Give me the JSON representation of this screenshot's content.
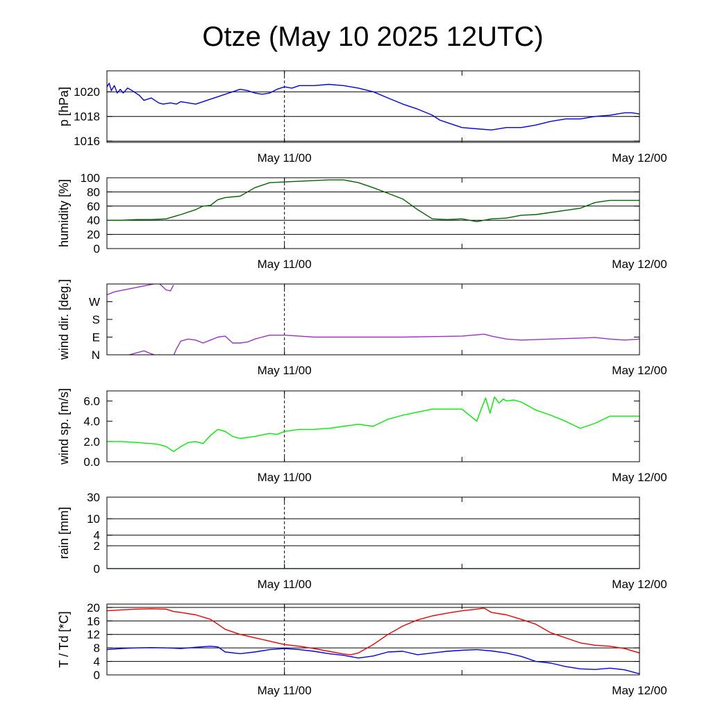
{
  "chart_data": {
    "type": "line",
    "title": "Otze (May 10 2025 12UTC)",
    "x_labels": [
      "May 11/00",
      "May 12/00"
    ],
    "time_range_hours": [
      0,
      36
    ],
    "midnight_marker_hours": 12,
    "panels": [
      {
        "id": "pressure",
        "ylabel": "p [hPa]",
        "ylim": [
          1015.9,
          1021.7
        ],
        "yticks": [
          1016,
          1018,
          1020
        ],
        "ytick_labels": [
          "1016",
          "1018",
          "1020"
        ],
        "gridlines": [
          1016,
          1018,
          1020
        ],
        "series": [
          {
            "color": "#0000ee",
            "x": [
              0,
              0.15,
              0.3,
              0.5,
              0.7,
              0.9,
              1.1,
              1.4,
              1.7,
              2.2,
              2.5,
              3.0,
              3.5,
              3.8,
              4.3,
              4.7,
              5.0,
              5.5,
              6.0,
              6.5,
              7.0,
              7.5,
              8.0,
              8.5,
              9.0,
              9.5,
              10.0,
              10.5,
              11.0,
              11.5,
              12.0,
              12.5,
              13.0,
              14.0,
              15.0,
              16.0,
              17.0,
              18.0,
              19.0,
              20.0,
              21.0,
              22.0,
              22.5,
              23.0,
              24.0,
              25.0,
              26.0,
              27.0,
              28.0,
              29.0,
              30.0,
              31.0,
              32.0,
              33.0,
              34.0,
              35.0,
              35.5,
              36.0
            ],
            "y": [
              1020.4,
              1020.7,
              1020.1,
              1020.5,
              1019.9,
              1020.2,
              1019.9,
              1020.3,
              1020.1,
              1019.7,
              1019.3,
              1019.5,
              1019.1,
              1019.0,
              1019.1,
              1019.0,
              1019.2,
              1019.1,
              1019.0,
              1019.2,
              1019.4,
              1019.6,
              1019.8,
              1020.0,
              1020.2,
              1020.1,
              1019.9,
              1019.8,
              1019.9,
              1020.2,
              1020.4,
              1020.3,
              1020.5,
              1020.5,
              1020.6,
              1020.5,
              1020.3,
              1020.0,
              1019.5,
              1019.0,
              1018.6,
              1018.1,
              1017.7,
              1017.5,
              1017.1,
              1017.0,
              1016.9,
              1017.1,
              1017.1,
              1017.3,
              1017.6,
              1017.8,
              1017.8,
              1018.0,
              1018.1,
              1018.3,
              1018.3,
              1018.2
            ]
          }
        ]
      },
      {
        "id": "humidity",
        "ylabel": "humidity [%]",
        "ylim": [
          0,
          100
        ],
        "yticks": [
          0,
          20,
          40,
          60,
          80,
          100
        ],
        "ytick_labels": [
          "0",
          "20",
          "40",
          "60",
          "80",
          "100"
        ],
        "gridlines": [
          20,
          40,
          60,
          80,
          100
        ],
        "series": [
          {
            "color": "#006400",
            "x": [
              0,
              1,
              2,
              3,
              4,
              4.5,
              5,
              6,
              6.5,
              7,
              7.5,
              8,
              9,
              10,
              11,
              12,
              13,
              14,
              15,
              16,
              17,
              18,
              19,
              20,
              21,
              22,
              23,
              24,
              25,
              26,
              27,
              28,
              29,
              30,
              31,
              32,
              33,
              34,
              35,
              36
            ],
            "y": [
              40,
              40,
              41,
              41,
              42,
              45,
              48,
              55,
              60,
              61,
              69,
              72,
              74,
              86,
              93,
              94,
              95,
              96,
              97,
              97,
              93,
              86,
              78,
              70,
              55,
              42,
              41,
              42,
              38,
              42,
              43,
              47,
              48,
              51,
              54,
              57,
              65,
              68,
              68,
              68
            ]
          }
        ]
      },
      {
        "id": "wind_direction",
        "ylabel": "wind dir. [deg.]",
        "ylim": [
          0,
          360
        ],
        "yticks": [
          0,
          90,
          180,
          270
        ],
        "ytick_labels": [
          "N",
          "E",
          "S",
          "W"
        ],
        "gridlines": [],
        "series": [
          {
            "color": "#9932cc",
            "x": [
              0,
              0.5,
              1.5,
              2.5,
              3.5,
              4.0,
              4.3,
              4.5
            ],
            "y": [
              305,
              320,
              335,
              350,
              365,
              330,
              325,
              355
            ]
          },
          {
            "color": "#9932cc",
            "x": [
              1.5,
              2.5,
              3.0,
              3.4,
              3.5,
              4.5,
              4.7,
              5.0,
              5.5,
              6.0,
              6.5,
              7.0,
              7.5,
              8.0,
              8.5,
              9.0,
              9.5,
              10.0,
              10.5,
              11.0,
              12.0,
              13.0,
              14.0,
              16.0,
              18.0,
              20.0,
              24.0,
              25.5,
              26.0,
              27.0,
              28.0,
              30.0,
              32.0,
              33.0,
              34.0,
              35.0,
              36.0
            ],
            "y": [
              0,
              20,
              5,
              -5,
              0,
              -5,
              30,
              70,
              80,
              75,
              60,
              75,
              90,
              95,
              60,
              60,
              65,
              80,
              90,
              100,
              100,
              95,
              90,
              90,
              90,
              90,
              95,
              105,
              95,
              80,
              75,
              80,
              85,
              88,
              80,
              75,
              80
            ]
          }
        ]
      },
      {
        "id": "wind_speed",
        "ylabel": "wind sp. [m/s]",
        "ylim": [
          0,
          7
        ],
        "yticks": [
          0,
          2,
          4,
          6
        ],
        "ytick_labels": [
          "0.0",
          "2.0",
          "4.0",
          "6.0"
        ],
        "gridlines": [],
        "series": [
          {
            "color": "#00ee00",
            "x": [
              0,
              1,
              2,
              3,
              3.5,
              4.0,
              4.5,
              5.0,
              5.5,
              6.0,
              6.5,
              7.0,
              7.5,
              8.0,
              8.5,
              9.0,
              10.0,
              11.0,
              11.5,
              12.0,
              13.0,
              14.0,
              15.0,
              16.0,
              17.0,
              18.0,
              19.0,
              20.0,
              21.0,
              22.0,
              24.0,
              25.0,
              25.3,
              25.6,
              25.9,
              26.2,
              26.5,
              26.8,
              27.0,
              27.5,
              28.0,
              29.0,
              30.0,
              31.0,
              32.0,
              33.0,
              34.0,
              35.0,
              36.0
            ],
            "y": [
              2.0,
              2.0,
              1.9,
              1.8,
              1.7,
              1.5,
              1.0,
              1.5,
              1.9,
              2.0,
              1.8,
              2.6,
              3.2,
              3.0,
              2.5,
              2.3,
              2.5,
              2.8,
              2.7,
              3.0,
              3.2,
              3.2,
              3.3,
              3.5,
              3.7,
              3.5,
              4.2,
              4.6,
              4.9,
              5.2,
              5.2,
              4.0,
              5.2,
              6.3,
              4.8,
              6.4,
              5.8,
              6.2,
              6.0,
              6.1,
              5.9,
              5.1,
              4.6,
              4.0,
              3.3,
              3.8,
              4.5,
              4.5,
              4.5
            ]
          }
        ]
      },
      {
        "id": "rain",
        "ylabel": "rain [mm]",
        "ylim": [
          0,
          30
        ],
        "yticks": [
          0,
          2,
          4,
          10,
          30
        ],
        "ytick_labels": [
          "0",
          "2",
          "4",
          "10",
          "30"
        ],
        "gridlines": [
          2,
          4,
          10,
          30
        ],
        "scale": "log1p",
        "series": [
          {
            "color": "#00008b",
            "x": [
              0,
              36
            ],
            "y": [
              0,
              0
            ]
          }
        ]
      },
      {
        "id": "temperature",
        "ylabel": "T / Td [*C]",
        "ylim": [
          0,
          21
        ],
        "yticks": [
          0,
          4,
          8,
          12,
          16,
          20
        ],
        "ytick_labels": [
          "0",
          "4",
          "8",
          "12",
          "16",
          "20"
        ],
        "gridlines": [
          4,
          8,
          12,
          16,
          20
        ],
        "series": [
          {
            "color": "#ee0000",
            "x": [
              0,
              1,
              2,
              3,
              4,
              4.5,
              5.0,
              6.0,
              7.0,
              7.5,
              8.0,
              9.0,
              10.0,
              11.0,
              12.0,
              13.0,
              14.0,
              15.0,
              16.0,
              16.5,
              17.0,
              18.0,
              19.0,
              20.0,
              21.0,
              22.0,
              23.0,
              24.0,
              25.0,
              25.5,
              26.0,
              27.0,
              28.0,
              29.0,
              30.0,
              31.0,
              32.0,
              33.0,
              34.0,
              35.0,
              36.0
            ],
            "y": [
              19.0,
              19.3,
              19.5,
              19.6,
              19.5,
              18.8,
              18.5,
              17.8,
              16.5,
              15.0,
              13.5,
              12.0,
              11.0,
              10.0,
              9.0,
              8.5,
              7.8,
              7.0,
              6.2,
              6.0,
              6.5,
              9.0,
              12.0,
              14.5,
              16.3,
              17.5,
              18.3,
              19.0,
              19.5,
              19.8,
              18.5,
              17.8,
              16.5,
              15.0,
              12.5,
              11.0,
              9.5,
              8.8,
              8.5,
              7.8,
              6.5
            ]
          },
          {
            "color": "#0000ee",
            "x": [
              0,
              1,
              2,
              3,
              4,
              5,
              6,
              7,
              7.5,
              8,
              9,
              10,
              11,
              12,
              13,
              14,
              15,
              16,
              17,
              18,
              19,
              20,
              21,
              22,
              23,
              24,
              25,
              26,
              27,
              28,
              29,
              30,
              31,
              32,
              33,
              34,
              35,
              36
            ],
            "y": [
              7.5,
              7.8,
              8.0,
              8.1,
              8.0,
              7.8,
              8.2,
              8.5,
              8.3,
              6.8,
              6.3,
              6.8,
              7.5,
              7.8,
              7.5,
              7.0,
              6.3,
              5.8,
              5.0,
              5.6,
              6.8,
              7.0,
              6.0,
              6.5,
              7.0,
              7.3,
              7.5,
              7.1,
              6.5,
              5.5,
              4.0,
              3.5,
              2.5,
              1.8,
              1.6,
              2.0,
              1.5,
              0.3
            ]
          }
        ]
      }
    ]
  }
}
